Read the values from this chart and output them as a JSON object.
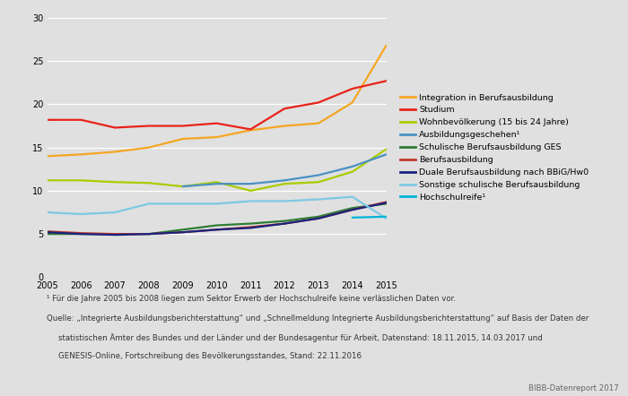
{
  "years": [
    2005,
    2006,
    2007,
    2008,
    2009,
    2010,
    2011,
    2012,
    2013,
    2014,
    2015
  ],
  "series": [
    {
      "label": "Integration in Berufsausbildung",
      "color": "#F5A623",
      "linewidth": 1.6,
      "data": [
        14.0,
        14.2,
        14.5,
        15.0,
        16.0,
        16.2,
        17.0,
        17.5,
        17.8,
        20.2,
        26.8
      ]
    },
    {
      "label": "Studium",
      "color": "#E8231A",
      "linewidth": 1.6,
      "data": [
        18.2,
        18.2,
        17.3,
        17.5,
        17.5,
        17.8,
        17.1,
        19.5,
        20.2,
        21.8,
        22.7
      ]
    },
    {
      "label": "Wohnbevölkerung (15 bis 24 Jahre)",
      "color": "#AACC00",
      "linewidth": 1.6,
      "data": [
        11.2,
        11.2,
        11.0,
        10.9,
        10.5,
        11.0,
        10.0,
        10.8,
        11.0,
        12.2,
        14.8
      ]
    },
    {
      "label": "Ausbildungsgeschehen¹",
      "color": "#4A90C4",
      "linewidth": 1.6,
      "data": [
        null,
        null,
        null,
        null,
        10.5,
        10.8,
        10.8,
        11.2,
        11.8,
        12.8,
        14.2
      ]
    },
    {
      "label": "Schulische Berufsausbildung GES",
      "color": "#2E7D32",
      "linewidth": 1.6,
      "data": [
        5.0,
        5.0,
        5.0,
        5.0,
        5.5,
        6.0,
        6.2,
        6.5,
        7.0,
        8.0,
        8.5
      ]
    },
    {
      "label": "Berufsausbildung",
      "color": "#C0392B",
      "linewidth": 1.6,
      "data": [
        5.3,
        5.1,
        5.0,
        5.0,
        5.2,
        5.5,
        5.8,
        6.2,
        6.8,
        7.8,
        8.7
      ]
    },
    {
      "label": "Duale Berufsausbildung nach BBiG/Hw0",
      "color": "#1A237E",
      "linewidth": 1.6,
      "data": [
        5.2,
        5.0,
        4.9,
        5.0,
        5.2,
        5.5,
        5.7,
        6.2,
        6.8,
        7.8,
        8.6
      ]
    },
    {
      "label": "Sonstige schulische Berufsausbildung",
      "color": "#7EC8E3",
      "linewidth": 1.6,
      "data": [
        7.5,
        7.3,
        7.5,
        8.5,
        8.5,
        8.5,
        8.8,
        8.8,
        9.0,
        9.3,
        6.8
      ]
    },
    {
      "label": "Hochschulreife¹",
      "color": "#00B4D8",
      "linewidth": 1.6,
      "data": [
        null,
        null,
        null,
        null,
        null,
        null,
        null,
        null,
        null,
        6.9,
        7.0
      ]
    }
  ],
  "xlim": [
    2005,
    2015
  ],
  "ylim": [
    0,
    30
  ],
  "yticks": [
    0,
    5,
    10,
    15,
    20,
    25,
    30
  ],
  "xticks": [
    2005,
    2006,
    2007,
    2008,
    2009,
    2010,
    2011,
    2012,
    2013,
    2014,
    2015
  ],
  "plot_bg": "#E0E0E0",
  "fig_bg": "#E0E0E0",
  "footnote1": "¹ Für die Jahre 2005 bis 2008 liegen zum Sektor Erwerb der Hochschulreife keine verlässlichen Daten vor.",
  "footnote2": "Quelle: „Integrierte Ausbildungsberichterstattung“ und „Schnellmeldung Integrierte Ausbildungsberichterstattung“ auf Basis der Daten der",
  "footnote3": "statistischen Ämter des Bundes und der Länder und der Bundesagentur für Arbeit, Datenstand: 18.11.2015, 14.03.2017 und",
  "footnote4": "GENESIS-Online, Fortschreibung des Bevölkerungsstandes, Stand: 22.11.2016",
  "watermark": "BIBB-Datenreport 2017"
}
